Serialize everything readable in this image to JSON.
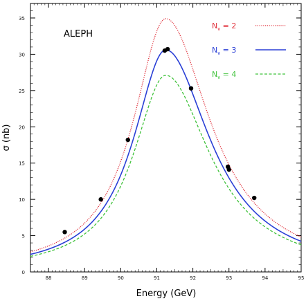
{
  "chart_data": {
    "type": "line",
    "title": "",
    "annotation": "ALEPH",
    "xlabel": "Energy  (GeV)",
    "ylabel": "σ (nb)",
    "xlim": [
      87.5,
      95
    ],
    "ylim": [
      0,
      37
    ],
    "x_ticks": [
      88,
      89,
      90,
      91,
      92,
      93,
      94,
      95
    ],
    "x_tick_labels": [
      "88",
      "89",
      "90",
      "91",
      "92",
      "93",
      "94",
      "95"
    ],
    "y_ticks": [
      0,
      5,
      10,
      15,
      20,
      25,
      30,
      35
    ],
    "y_tick_labels": [
      "0",
      "5",
      "10",
      "15",
      "20",
      "25",
      "30",
      "35"
    ],
    "grid": false,
    "legend_position": "top-right",
    "series": [
      {
        "name": "N_ν = 2",
        "legend_main": "N",
        "legend_sub": "ν",
        "legend_value": " = 2",
        "color": "#e0303a",
        "style": "dotted",
        "peak": 34.9
      },
      {
        "name": "N_ν = 3",
        "legend_main": "N",
        "legend_sub": "ν",
        "legend_value": " = 3",
        "color": "#2a3fd6",
        "style": "solid",
        "peak": 30.6
      },
      {
        "name": "N_ν = 4",
        "legend_main": "N",
        "legend_sub": "ν",
        "legend_value": " = 4",
        "color": "#3fc23a",
        "style": "dashed",
        "peak": 27.1
      }
    ],
    "data_points": [
      {
        "x": 88.45,
        "y": 5.5
      },
      {
        "x": 89.45,
        "y": 10.0
      },
      {
        "x": 90.2,
        "y": 18.2
      },
      {
        "x": 91.22,
        "y": 30.5
      },
      {
        "x": 91.3,
        "y": 30.7
      },
      {
        "x": 91.95,
        "y": 25.3
      },
      {
        "x": 92.97,
        "y": 14.5
      },
      {
        "x": 93.0,
        "y": 14.1
      },
      {
        "x": 93.7,
        "y": 10.2
      }
    ],
    "colors": {
      "axis": "#000000",
      "points": "#000000"
    }
  }
}
